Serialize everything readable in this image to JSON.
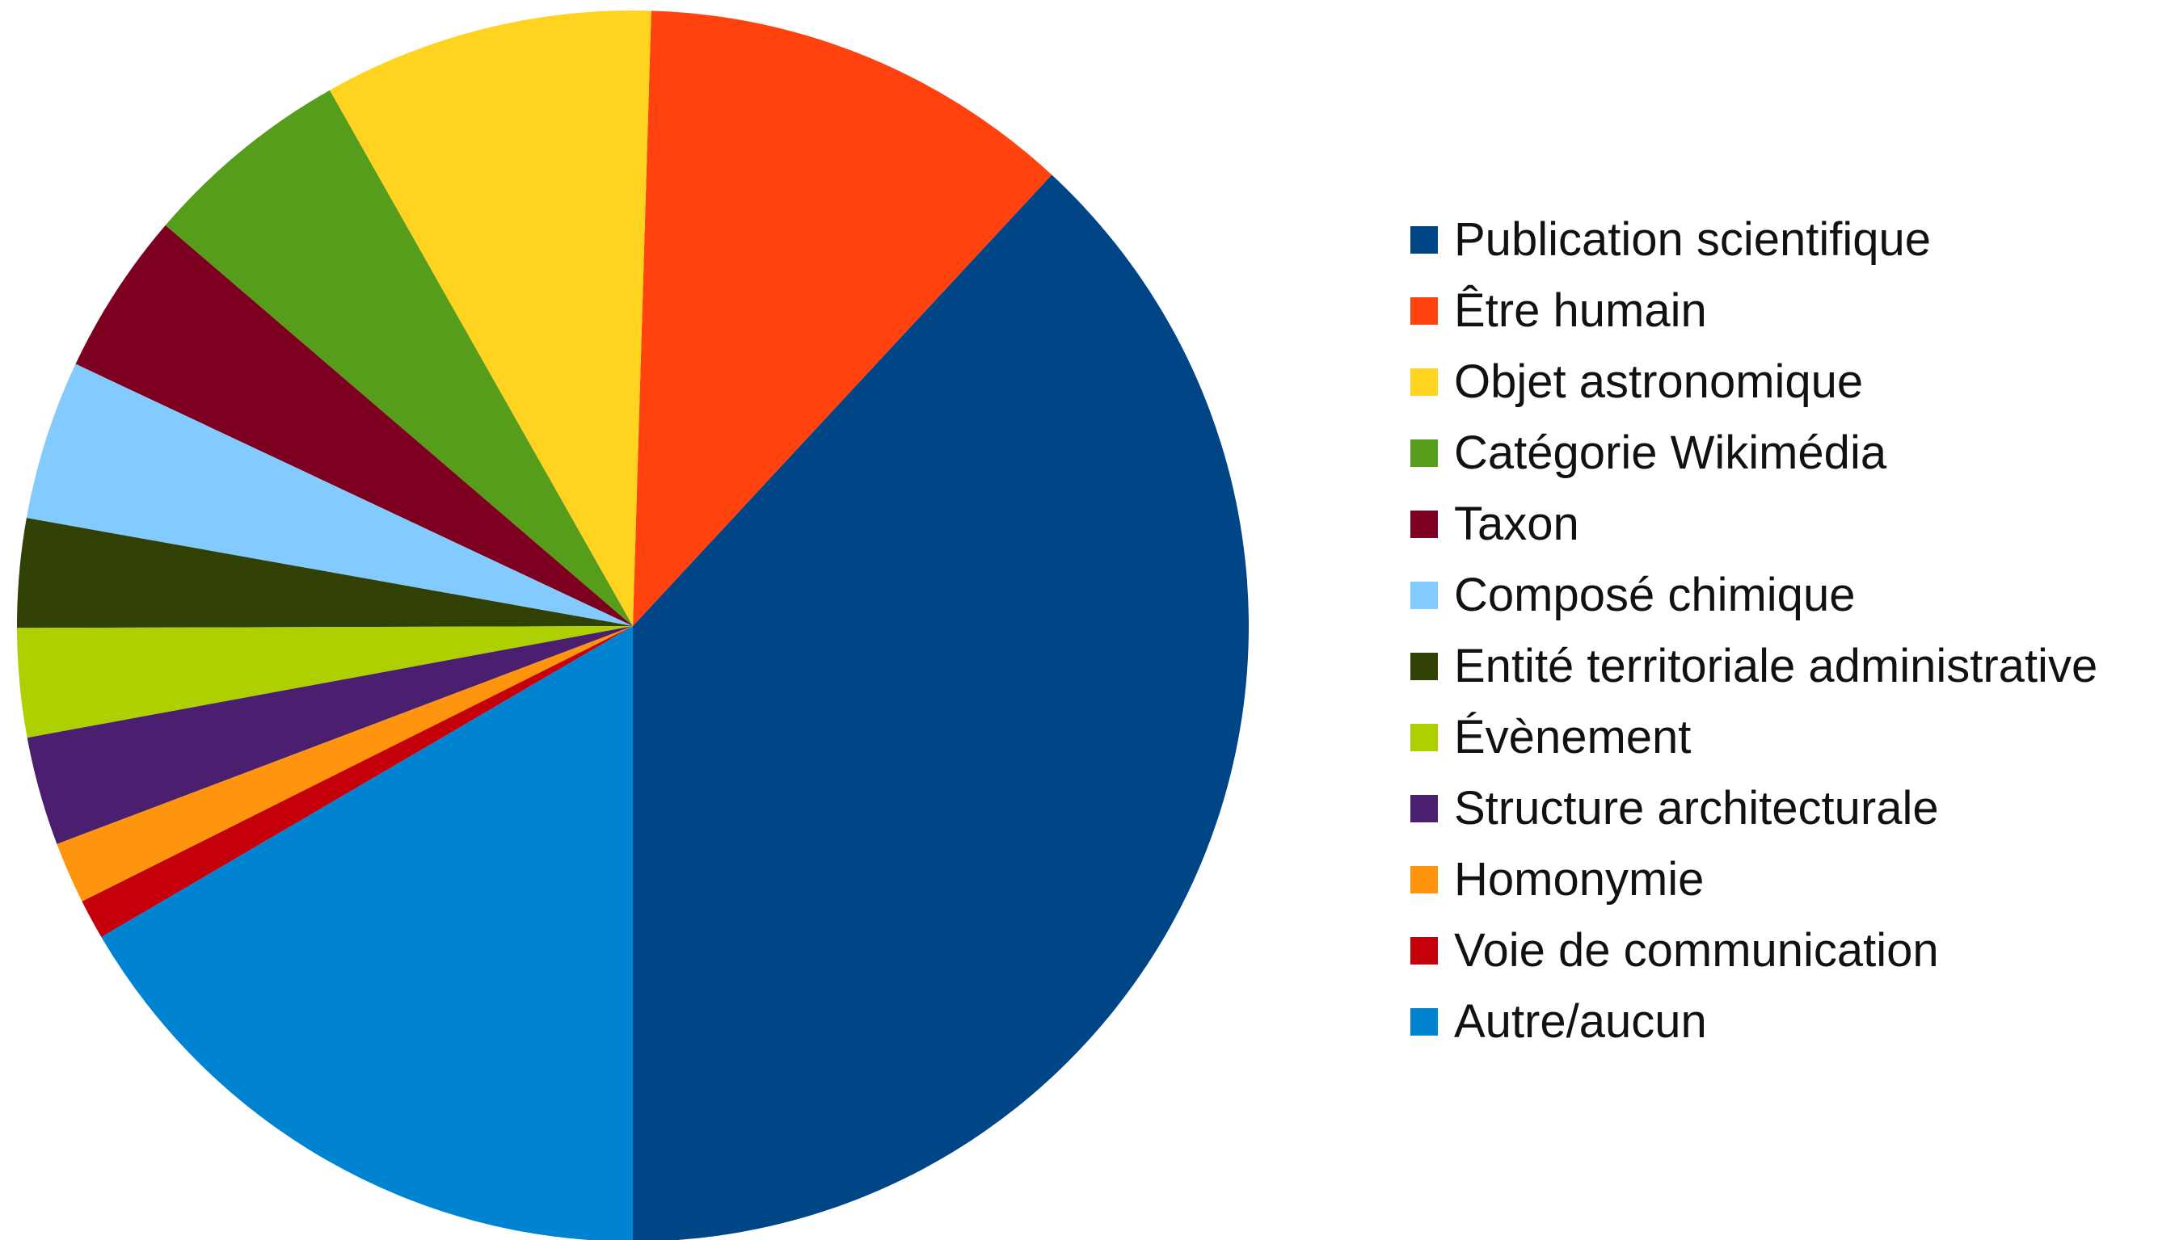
{
  "chart_data": {
    "type": "pie",
    "title": "",
    "categories": [
      "Publication scientifique",
      "Être humain",
      "Objet astronomique",
      "Catégorie Wikimédia",
      "Taxon",
      "Composé chimique",
      "Entité territoriale administrative",
      "Évènement",
      "Structure architecturale",
      "Homonymie",
      "Voie de communication",
      "Autre/aucun"
    ],
    "values": [
      40.0,
      12.0,
      9.1,
      5.8,
      4.5,
      4.4,
      3.0,
      3.0,
      3.0,
      1.7,
      1.1,
      17.4
    ],
    "colors": [
      "#004586",
      "#ff420e",
      "#ffd320",
      "#579d1c",
      "#7e0021",
      "#83caff",
      "#314004",
      "#aecf00",
      "#4b1f6f",
      "#ff950e",
      "#c5000b",
      "#0084d1"
    ],
    "start_angle": 180,
    "direction": "counterclockwise",
    "legend_position": "right"
  }
}
